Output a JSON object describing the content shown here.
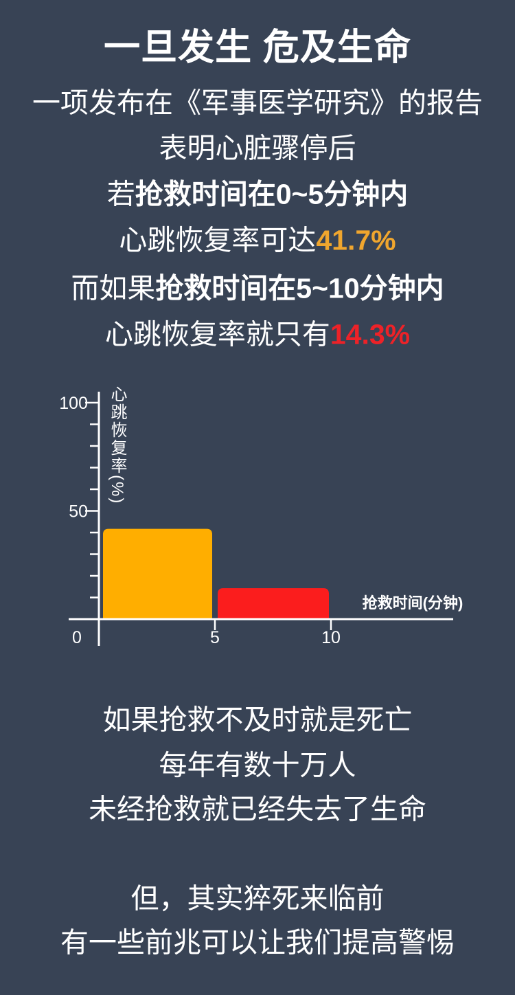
{
  "colors": {
    "background": "#384355",
    "text_white": "#FFFFFF",
    "accent_orange_text": "#F0A62E",
    "accent_red_text": "#ED2228",
    "bar_orange": "#FFAE00",
    "bar_red": "#FB1D1D"
  },
  "title": "一旦发生 危及生命",
  "paragraph1": {
    "line1": "一项发布在《军事医学研究》的报告",
    "line2": "表明心脏骤停后",
    "line3": {
      "prefix": "若",
      "bold": "抢救时间在0~5分钟内"
    },
    "line4": {
      "prefix": "心跳恢复率可达",
      "value": "41.7%"
    },
    "line5": {
      "prefix": "而如果",
      "bold": "抢救时间在5~10分钟内"
    },
    "line6": {
      "prefix": "心跳恢复率就只有",
      "value": "14.3%"
    }
  },
  "chart_data": {
    "type": "bar",
    "title": "",
    "xlabel": "抢救时间(分钟)",
    "ylabel": "心跳恢复率(%)",
    "ylim": [
      0,
      100
    ],
    "y_ticks_labeled": [
      50,
      100
    ],
    "y_minor_tick_step": 10,
    "x_ticks": [
      0,
      5,
      10
    ],
    "grid": false,
    "bars": [
      {
        "label": "0-5分钟",
        "x_start": 0,
        "x_end": 5,
        "value": 41.7,
        "color": "#FFAE00"
      },
      {
        "label": "5-10分钟",
        "x_start": 5,
        "x_end": 10,
        "value": 14.3,
        "color": "#FB1D1D"
      }
    ]
  },
  "paragraph2": {
    "line1": "如果抢救不及时就是死亡",
    "line2": "每年有数十万人",
    "line3": "未经抢救就已经失去了生命"
  },
  "paragraph3": {
    "line1": "但，其实猝死来临前",
    "line2": "有一些前兆可以让我们提高警惕"
  }
}
